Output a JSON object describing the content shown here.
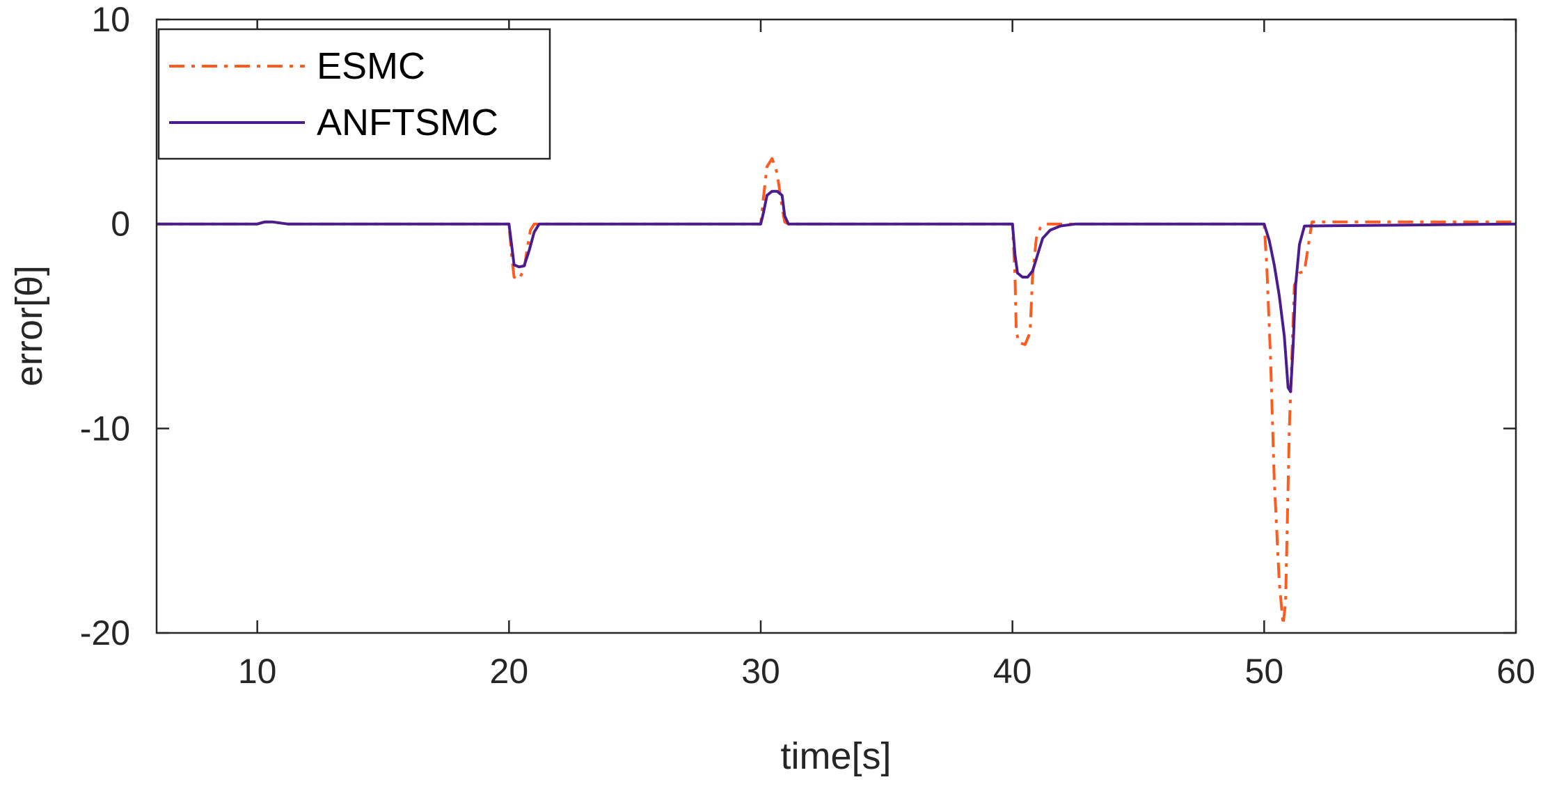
{
  "chart_data": {
    "type": "line",
    "xlabel": "time[s]",
    "ylabel": "error[θ]",
    "xlim": [
      6,
      60
    ],
    "ylim": [
      -20,
      10
    ],
    "xticks": [
      10,
      20,
      30,
      40,
      50,
      60
    ],
    "yticks": [
      10,
      0,
      -10,
      -20
    ],
    "grid": false,
    "legend_position": "top-left",
    "series": [
      {
        "name": "ESMC",
        "color": "#FF5A1F",
        "style": "dashdot",
        "x": [
          6,
          10,
          10.3,
          10.6,
          10.9,
          11.2,
          20,
          20.1,
          20.2,
          20.4,
          20.6,
          20.75,
          20.85,
          21,
          30,
          30.1,
          30.25,
          30.45,
          30.65,
          30.85,
          30.95,
          31.1,
          40,
          40.1,
          40.15,
          40.25,
          40.5,
          40.7,
          40.8,
          40.95,
          41.1,
          41.3,
          50,
          50.1,
          50.25,
          50.4,
          50.6,
          50.75,
          50.85,
          51,
          51.2,
          51.4,
          51.6,
          51.9,
          60
        ],
        "y": [
          0,
          0,
          0.1,
          0.1,
          0.05,
          0,
          0,
          -1.5,
          -2.6,
          -2.7,
          -2.2,
          -1,
          -0.3,
          0,
          0,
          1.2,
          2.8,
          3.2,
          2.5,
          0.8,
          0.1,
          0,
          0,
          -2.5,
          -5.2,
          -5.8,
          -5.9,
          -5.3,
          -2.5,
          -0.7,
          -0.2,
          0,
          0,
          -2,
          -6.5,
          -12.5,
          -17.5,
          -19.6,
          -18.5,
          -10,
          -3,
          -2.4,
          -2.3,
          0.1,
          0.1
        ]
      },
      {
        "name": "ANFTSMC",
        "color": "#4B1C8E",
        "style": "solid",
        "x": [
          6,
          10,
          10.3,
          10.6,
          10.9,
          11.2,
          20,
          20.1,
          20.2,
          20.4,
          20.6,
          20.8,
          21,
          21.2,
          30,
          30.1,
          30.25,
          30.45,
          30.65,
          30.85,
          30.95,
          31.1,
          40,
          40.1,
          40.2,
          40.4,
          40.6,
          40.8,
          41,
          41.2,
          41.5,
          41.9,
          42.5,
          50,
          50.2,
          50.4,
          50.6,
          50.8,
          50.95,
          51.05,
          51.15,
          51.25,
          51.4,
          51.6,
          60
        ],
        "y": [
          0,
          0,
          0.1,
          0.1,
          0.05,
          0,
          0,
          -1,
          -2,
          -2.1,
          -2.05,
          -1.3,
          -0.4,
          0,
          0,
          0.5,
          1.4,
          1.6,
          1.6,
          1.4,
          0.4,
          0,
          0,
          -1.5,
          -2.4,
          -2.6,
          -2.6,
          -2.3,
          -1.5,
          -0.7,
          -0.3,
          -0.1,
          0,
          0,
          -0.8,
          -2,
          -3.5,
          -5.5,
          -8,
          -8.2,
          -6,
          -3,
          -1,
          -0.1,
          0
        ]
      }
    ]
  }
}
